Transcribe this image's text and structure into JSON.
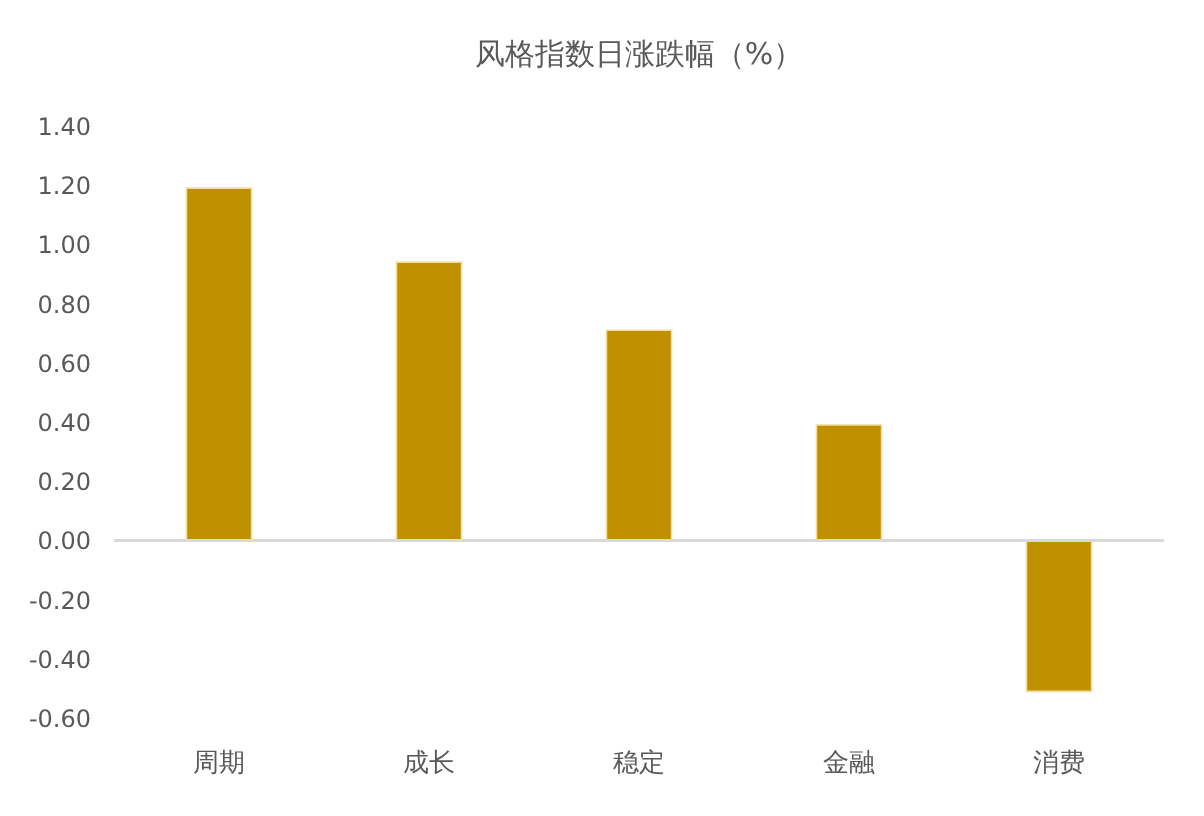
{
  "chart_data": {
    "type": "bar",
    "title": "风格指数日涨跌幅（%）",
    "categories": [
      "周期",
      "成长",
      "稳定",
      "金融",
      "消费"
    ],
    "values": [
      1.19,
      0.94,
      0.71,
      0.39,
      -0.51
    ],
    "color": "#bf9000",
    "ylim": [
      -0.6,
      1.4
    ],
    "yticks": [
      {
        "value": -0.6,
        "label": "-0.60"
      },
      {
        "value": -0.4,
        "label": "-0.40"
      },
      {
        "value": -0.2,
        "label": "-0.20"
      },
      {
        "value": 0,
        "label": "0.00"
      },
      {
        "value": 0.2,
        "label": "0.20"
      },
      {
        "value": 0.4,
        "label": "0.40"
      },
      {
        "value": 0.6,
        "label": "0.60"
      },
      {
        "value": 0.8,
        "label": "0.80"
      },
      {
        "value": 1.0,
        "label": "1.00"
      },
      {
        "value": 1.2,
        "label": "1.20"
      },
      {
        "value": 1.4,
        "label": "1.40"
      }
    ],
    "ref_lines": [
      {
        "axis": "y",
        "value": 0,
        "color": "#d9d9d9"
      }
    ],
    "grid": false,
    "legend": false
  }
}
